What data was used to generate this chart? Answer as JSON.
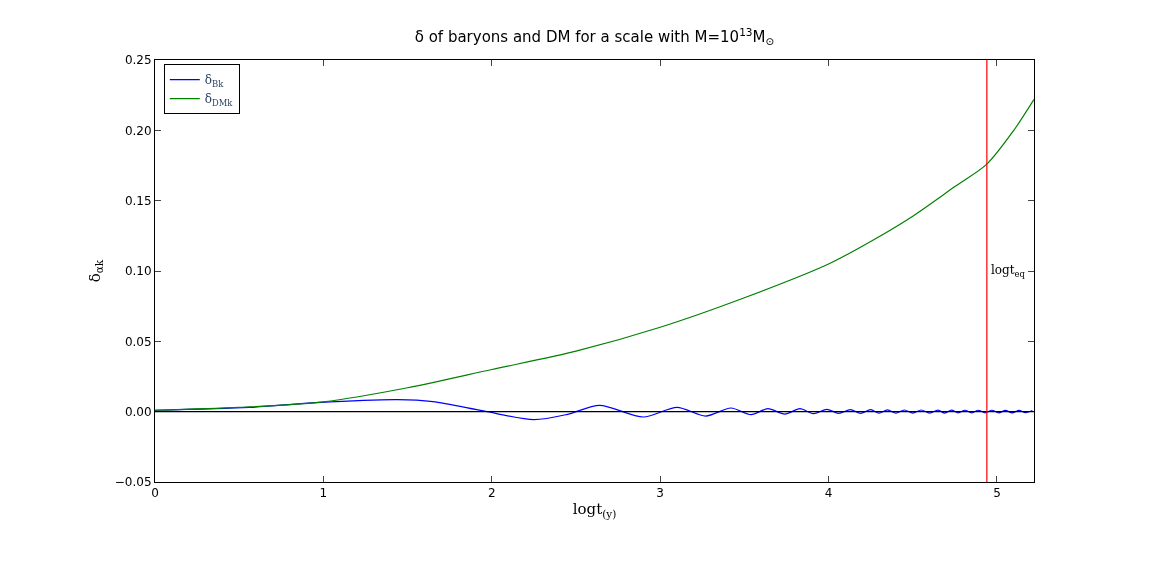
{
  "chart_data": {
    "type": "line",
    "title": "δ of baryons and DM for a scale with M=10$^{13}$M$_{⊙}$",
    "xlabel": "logt$_{(y)}$",
    "ylabel": "δ$_{αk}$",
    "xlim": [
      0,
      5.22
    ],
    "xticks": [
      0,
      1,
      2,
      3,
      4,
      5
    ],
    "ylim": [
      -0.05,
      0.25
    ],
    "yticks": [
      {
        "value": -0.05,
        "label": "−0.05"
      },
      {
        "value": 0,
        "label": "0.00"
      },
      {
        "value": 0.05,
        "label": "0.05"
      },
      {
        "value": 0.1,
        "label": "0.10"
      },
      {
        "value": 0.15,
        "label": "0.15"
      },
      {
        "value": 0.2,
        "label": "0.20"
      },
      {
        "value": 0.25,
        "label": "0.25"
      }
    ],
    "legend": "top left",
    "marker": "none",
    "line_style": "solid",
    "series": [
      {
        "name": "δ$_{Bk}$",
        "color": "#0000ff",
        "x": [
          0,
          0.56,
          0.96,
          1.44,
          1.65,
          1.95,
          2.25,
          2.45,
          2.64,
          2.9,
          3.1,
          3.27,
          3.42,
          3.54,
          3.64,
          3.74,
          3.83,
          3.91,
          3.99,
          4.06,
          4.13,
          4.19,
          4.25,
          4.3,
          4.35,
          4.4,
          4.45,
          4.5,
          4.55,
          4.6,
          4.65,
          4.69,
          4.73,
          4.77,
          4.81,
          4.85,
          4.89,
          4.93,
          4.97,
          5.01,
          5.05,
          5.09,
          5.13,
          5.17,
          5.21
        ],
        "values": [
          0.001,
          0.003,
          0.0064,
          0.0085,
          0.0071,
          0.0005,
          -0.0057,
          -0.0019,
          0.0045,
          -0.0038,
          0.0031,
          -0.0031,
          0.0026,
          -0.0021,
          0.0021,
          -0.0017,
          0.0021,
          -0.0014,
          0.0017,
          -0.0012,
          0.0014,
          -0.0012,
          0.0014,
          -0.0011,
          0.0013,
          -0.0011,
          0.0012,
          -0.001,
          0.0012,
          -0.001,
          0.0011,
          -0.001,
          0.0011,
          -0.0009,
          0.001,
          -0.0009,
          0.001,
          -0.0008,
          0.001,
          -0.0008,
          0.0009,
          -0.0008,
          0.0009,
          -0.0007,
          0.0008
        ]
      },
      {
        "name": "δ$_{DMk}$",
        "color": "#008000",
        "x": [
          0,
          0.5,
          1,
          1.5,
          2,
          2.5,
          3,
          3.5,
          4,
          4.25,
          4.5,
          4.75,
          4.94,
          5.1,
          5.22
        ],
        "values": [
          0.001,
          0.003,
          0.007,
          0.017,
          0.03,
          0.043,
          0.06,
          0.081,
          0.105,
          0.121,
          0.139,
          0.16,
          0.176,
          0.2,
          0.222
        ]
      }
    ],
    "ref_lines": [
      {
        "axis": "y",
        "value": 0,
        "color": "#000000"
      },
      {
        "axis": "x",
        "value": 4.94,
        "label": "logt$_{eq}$",
        "color": "#ff0000"
      }
    ]
  }
}
